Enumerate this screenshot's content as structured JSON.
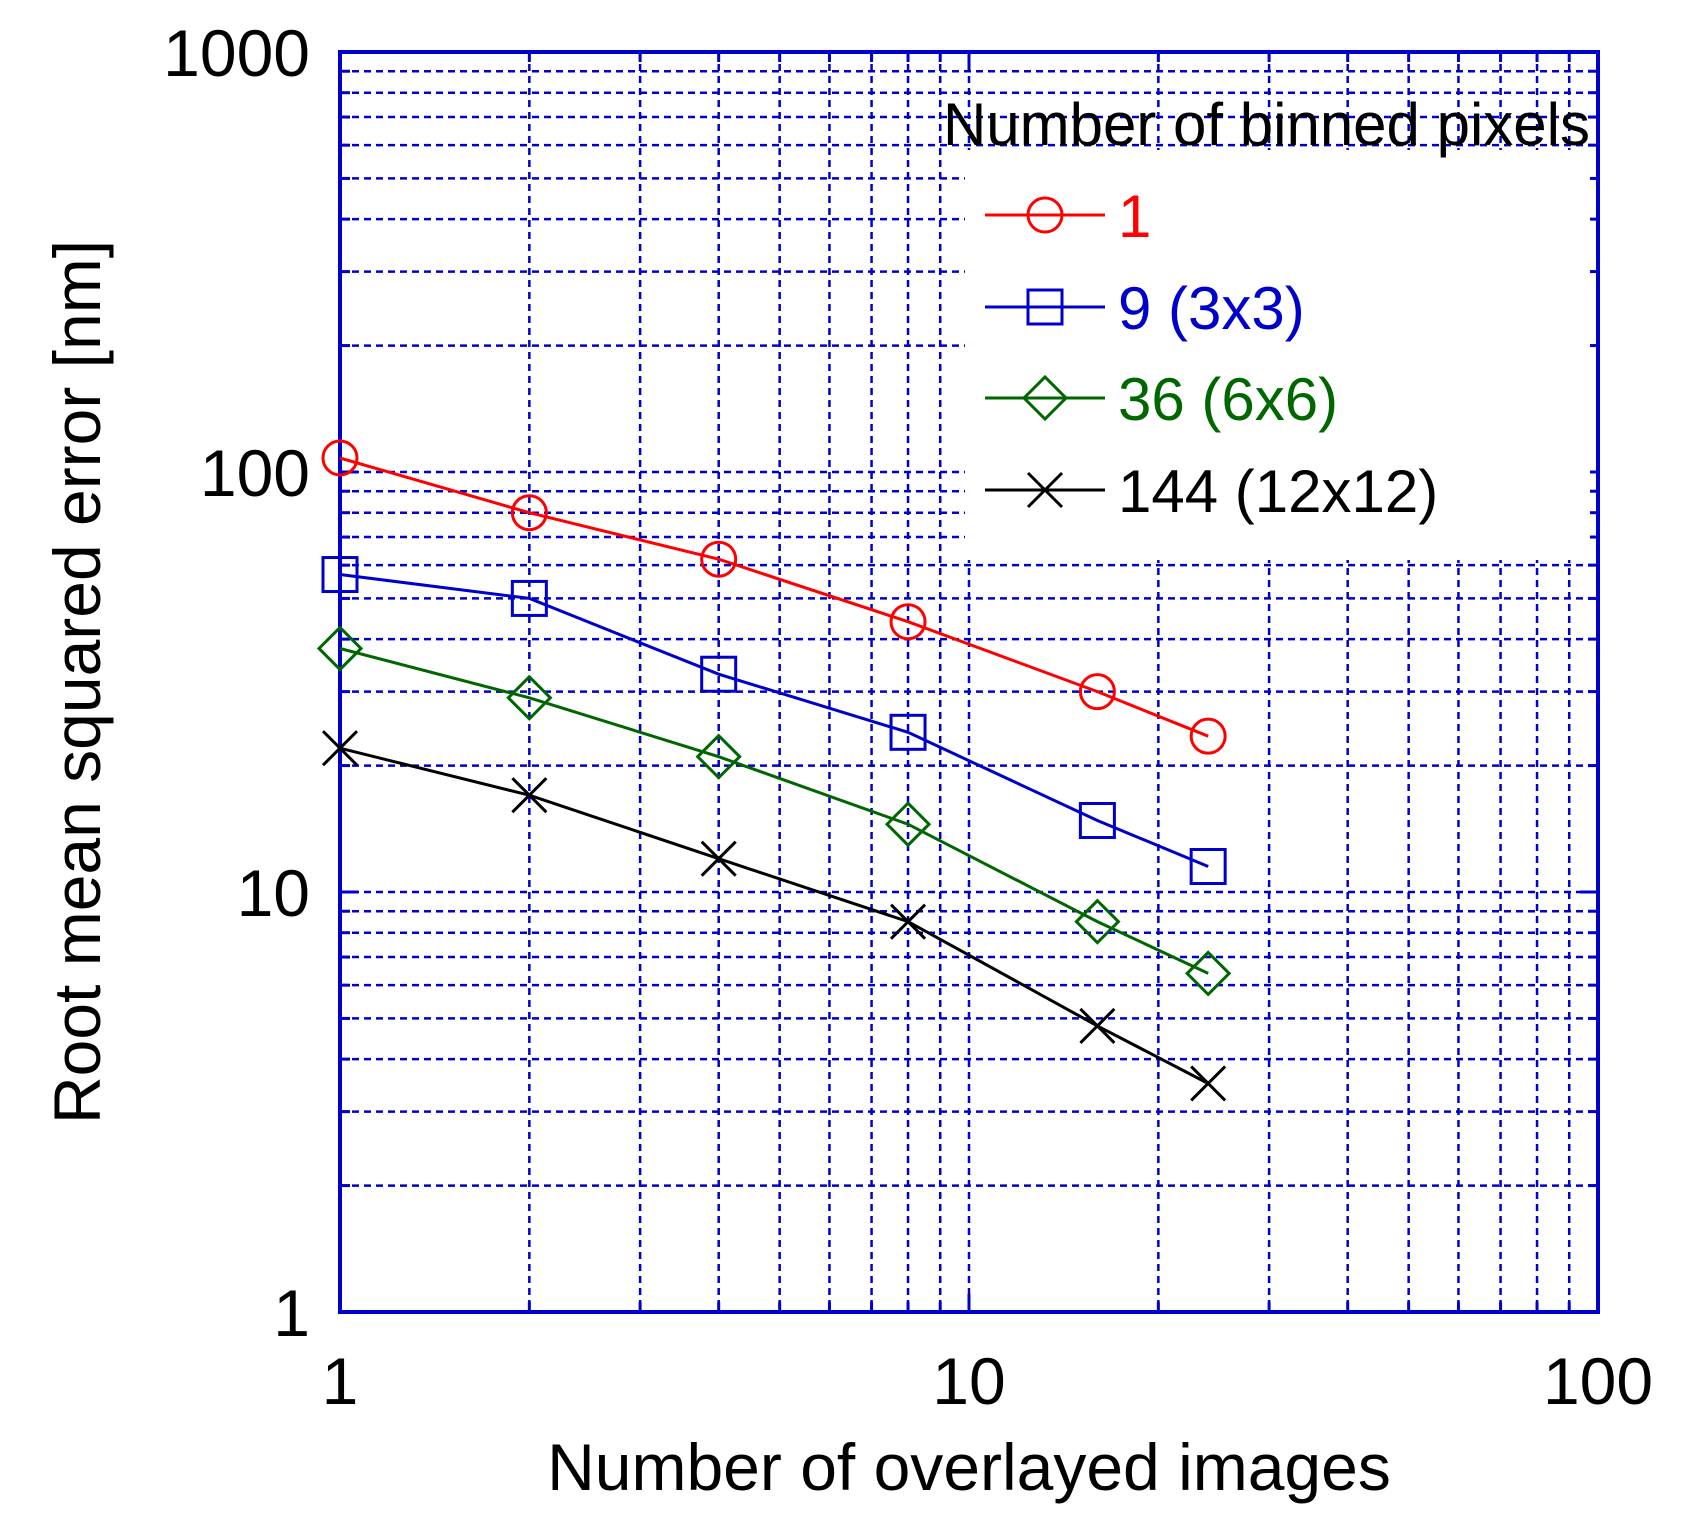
{
  "chart_data": {
    "type": "line",
    "xscale": "log",
    "yscale": "log",
    "xlim": [
      1,
      100
    ],
    "ylim": [
      1,
      1000
    ],
    "xticks": [
      "1",
      "10",
      "100"
    ],
    "yticks": [
      "1",
      "10",
      "100",
      "1000"
    ],
    "xlabel": "Number of overlayed images",
    "ylabel": "Root mean squared error [nm]",
    "grid": true,
    "grid_color": "#0000cc",
    "axes_color": "#0000cc",
    "legend": {
      "title": "Number of binned pixels",
      "position": "top-right"
    },
    "x": [
      1,
      2,
      4,
      8,
      16,
      24
    ],
    "series": [
      {
        "name": "1",
        "color": "#ff0000",
        "marker": "circle",
        "values": [
          108,
          80,
          62,
          44,
          30,
          23.5
        ]
      },
      {
        "name": "9 (3x3)",
        "color": "#0000cc",
        "marker": "square",
        "values": [
          57,
          50,
          33,
          24,
          14.8,
          11.5
        ]
      },
      {
        "name": "36 (6x6)",
        "color": "#006600",
        "marker": "diamond",
        "values": [
          38,
          29,
          21,
          14.5,
          8.5,
          6.4
        ]
      },
      {
        "name": "144 (12x12)",
        "color": "#000000",
        "marker": "x",
        "values": [
          22,
          17,
          12,
          8.5,
          4.8,
          3.5
        ]
      }
    ]
  }
}
